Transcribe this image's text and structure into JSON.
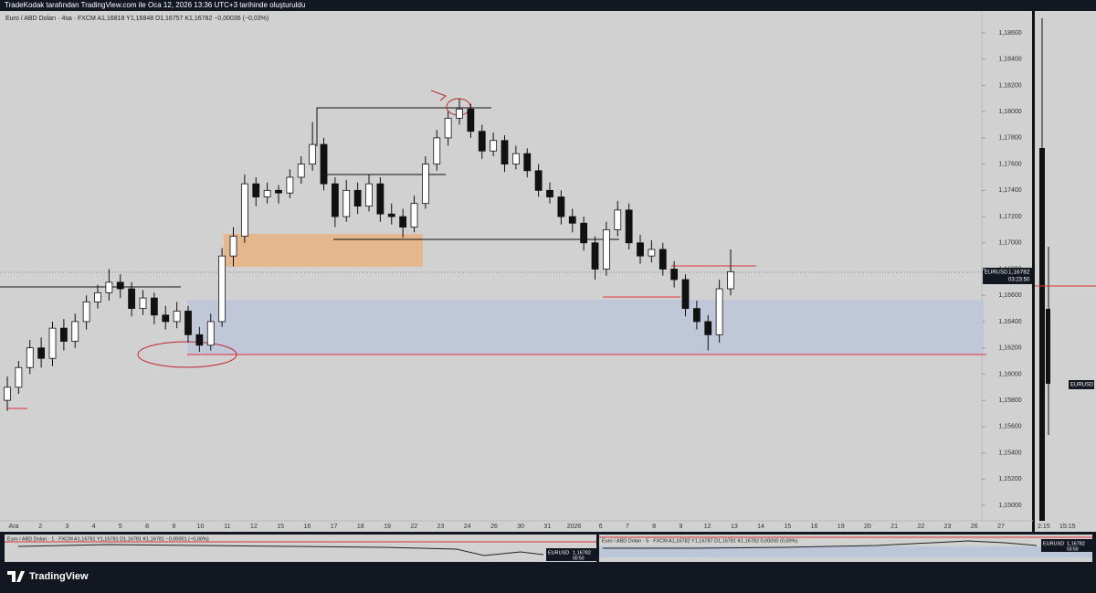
{
  "header": {
    "caption": "TradeKodak tarafından TradingView.com ile Oca 12, 2026 13:36 UTC+3 tarihinde oluşturuldu",
    "brand": "TradingView"
  },
  "chart_data": {
    "type": "candlestick",
    "legend": "Euro / ABD Doları · 4sa · FXCM  A1,16818  Y1,16848  D1,16757  K1,16782  −0,00036 (−0,03%)",
    "symbol": "EURUSD",
    "last_price": "1,16782",
    "countdown": "03:23:50",
    "x_labels": [
      "Ara",
      "2",
      "3",
      "4",
      "5",
      "8",
      "9",
      "10",
      "11",
      "12",
      "15",
      "16",
      "17",
      "18",
      "19",
      "22",
      "23",
      "24",
      "26",
      "30",
      "31",
      "2026",
      "6",
      "7",
      "8",
      "9",
      "12",
      "13",
      "14",
      "15",
      "16",
      "19",
      "20",
      "21",
      "22",
      "23",
      "26",
      "27"
    ],
    "ylim": [
      1.14882,
      1.18767
    ],
    "yticks": [
      {
        "value": 1.186,
        "label": "1,18600"
      },
      {
        "value": 1.184,
        "label": "1,18400"
      },
      {
        "value": 1.182,
        "label": "1,18200"
      },
      {
        "value": 1.18,
        "label": "1,18000"
      },
      {
        "value": 1.178,
        "label": "1,17800"
      },
      {
        "value": 1.176,
        "label": "1,17600"
      },
      {
        "value": 1.174,
        "label": "1,17400"
      },
      {
        "value": 1.172,
        "label": "1,17200"
      },
      {
        "value": 1.17,
        "label": "1,17000"
      },
      {
        "value": 1.168,
        "label": "1,16800"
      },
      {
        "value": 1.166,
        "label": "1,16600"
      },
      {
        "value": 1.164,
        "label": "1,16400"
      },
      {
        "value": 1.162,
        "label": "1,16200"
      },
      {
        "value": 1.16,
        "label": "1,16000"
      },
      {
        "value": 1.158,
        "label": "1,15800"
      },
      {
        "value": 1.156,
        "label": "1,15600"
      },
      {
        "value": 1.154,
        "label": "1,15400"
      },
      {
        "value": 1.152,
        "label": "1,15200"
      },
      {
        "value": 1.15,
        "label": "1,15000"
      }
    ],
    "candles": [
      [
        1.158,
        1.1598,
        1.1572,
        1.159
      ],
      [
        1.159,
        1.161,
        1.1585,
        1.1605
      ],
      [
        1.1605,
        1.1626,
        1.16,
        1.162
      ],
      [
        1.162,
        1.1628,
        1.1605,
        1.1612
      ],
      [
        1.1612,
        1.164,
        1.1606,
        1.1635
      ],
      [
        1.1635,
        1.1642,
        1.1618,
        1.1625
      ],
      [
        1.1625,
        1.1646,
        1.162,
        1.164
      ],
      [
        1.164,
        1.166,
        1.1634,
        1.1655
      ],
      [
        1.1655,
        1.1668,
        1.165,
        1.1662
      ],
      [
        1.1662,
        1.168,
        1.1656,
        1.167
      ],
      [
        1.167,
        1.1676,
        1.1658,
        1.1665
      ],
      [
        1.1665,
        1.167,
        1.1644,
        1.165
      ],
      [
        1.165,
        1.1664,
        1.1645,
        1.1658
      ],
      [
        1.1658,
        1.1662,
        1.1638,
        1.1645
      ],
      [
        1.1645,
        1.1652,
        1.1634,
        1.164
      ],
      [
        1.164,
        1.1655,
        1.1635,
        1.1648
      ],
      [
        1.1648,
        1.1652,
        1.1624,
        1.163
      ],
      [
        1.163,
        1.1636,
        1.1617,
        1.1622
      ],
      [
        1.1622,
        1.1646,
        1.1618,
        1.164
      ],
      [
        1.164,
        1.1696,
        1.1636,
        1.169
      ],
      [
        1.169,
        1.1712,
        1.1682,
        1.1705
      ],
      [
        1.1705,
        1.1752,
        1.17,
        1.1745
      ],
      [
        1.1745,
        1.175,
        1.1728,
        1.1735
      ],
      [
        1.1735,
        1.1746,
        1.173,
        1.174
      ],
      [
        1.174,
        1.1744,
        1.173,
        1.1738
      ],
      [
        1.1738,
        1.1756,
        1.1734,
        1.175
      ],
      [
        1.175,
        1.1766,
        1.1745,
        1.176
      ],
      [
        1.176,
        1.1792,
        1.1755,
        1.1775
      ],
      [
        1.1775,
        1.178,
        1.174,
        1.1745
      ],
      [
        1.1745,
        1.175,
        1.1712,
        1.172
      ],
      [
        1.172,
        1.1748,
        1.1716,
        1.174
      ],
      [
        1.174,
        1.1746,
        1.1722,
        1.1728
      ],
      [
        1.1728,
        1.1752,
        1.1724,
        1.1745
      ],
      [
        1.1745,
        1.175,
        1.1716,
        1.1722
      ],
      [
        1.1722,
        1.173,
        1.1714,
        1.172
      ],
      [
        1.172,
        1.1726,
        1.1704,
        1.1712
      ],
      [
        1.1712,
        1.1736,
        1.1708,
        1.173
      ],
      [
        1.173,
        1.1766,
        1.1726,
        1.176
      ],
      [
        1.176,
        1.1786,
        1.1755,
        1.178
      ],
      [
        1.178,
        1.18,
        1.1774,
        1.1795
      ],
      [
        1.1795,
        1.181,
        1.179,
        1.1802
      ],
      [
        1.1802,
        1.1806,
        1.178,
        1.1785
      ],
      [
        1.1785,
        1.179,
        1.1764,
        1.177
      ],
      [
        1.177,
        1.1784,
        1.1766,
        1.1778
      ],
      [
        1.1778,
        1.1782,
        1.1754,
        1.176
      ],
      [
        1.176,
        1.1774,
        1.1756,
        1.1768
      ],
      [
        1.1768,
        1.1772,
        1.175,
        1.1755
      ],
      [
        1.1755,
        1.176,
        1.1735,
        1.174
      ],
      [
        1.174,
        1.1746,
        1.173,
        1.1735
      ],
      [
        1.1735,
        1.174,
        1.1714,
        1.172
      ],
      [
        1.172,
        1.1726,
        1.1708,
        1.1715
      ],
      [
        1.1715,
        1.172,
        1.1694,
        1.17
      ],
      [
        1.17,
        1.1705,
        1.1672,
        1.168
      ],
      [
        1.168,
        1.1716,
        1.1675,
        1.171
      ],
      [
        1.171,
        1.1732,
        1.1705,
        1.1725
      ],
      [
        1.1725,
        1.173,
        1.1695,
        1.17
      ],
      [
        1.17,
        1.1706,
        1.1684,
        1.169
      ],
      [
        1.169,
        1.1702,
        1.1685,
        1.1695
      ],
      [
        1.1695,
        1.17,
        1.1675,
        1.168
      ],
      [
        1.168,
        1.1686,
        1.1666,
        1.1672
      ],
      [
        1.1672,
        1.1676,
        1.1644,
        1.165
      ],
      [
        1.165,
        1.1656,
        1.1634,
        1.164
      ],
      [
        1.164,
        1.1645,
        1.1618,
        1.163
      ],
      [
        1.163,
        1.1672,
        1.1624,
        1.1665
      ],
      [
        1.1665,
        1.1695,
        1.166,
        1.1678
      ]
    ]
  },
  "side_panel": {
    "symbol": "EURUSD",
    "time_left": "2:15",
    "time_right": "15:15"
  },
  "bottom_left": {
    "legend": "Euro / ABD Doları · 1 · FXCM  A1,16781  Y1,16781  D1,16781  K1,16781  −0,00001 (−0,00%)",
    "symbol": "EURUSD",
    "price": "1,16782",
    "countdown": "00:50"
  },
  "bottom_right": {
    "legend": "Euro / ABD Doları · 5 · FXCM  A1,16782  Y1,16787  D1,16781  K1,16782  0,00000 (0,00%)",
    "symbol": "EURUSD",
    "price": "1,16782",
    "countdown": "03:50"
  }
}
